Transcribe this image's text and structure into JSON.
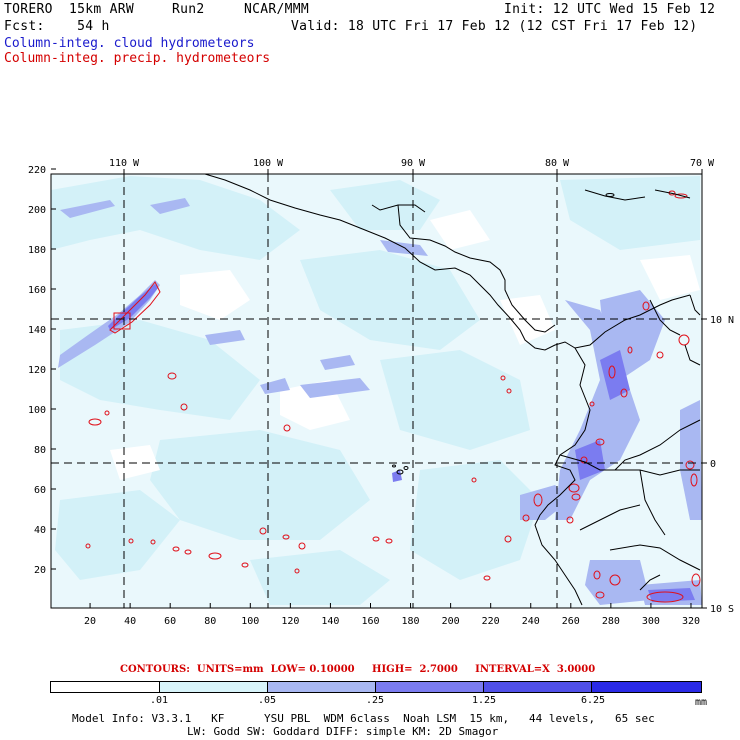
{
  "header": {
    "model_name": "TORERO  15km ARW",
    "run": "Run2",
    "org": "NCAR/MMM",
    "init": "Init: 12 UTC Wed 15 Feb 12",
    "forecast": "Fcst:    54 h",
    "valid": "Valid: 18 UTC Fri 17 Feb 12 (12 CST Fri 17 Feb 12)"
  },
  "legend": {
    "cloud": "Column-integ. cloud hydrometeors",
    "precip": "Column-integ. precip. hydrometeors"
  },
  "map": {
    "top_lon_labels": [
      "110 W",
      "100 W",
      "90 W",
      "80 W",
      "70 W"
    ],
    "right_lat_labels": [
      "10 N",
      "0",
      "10 S"
    ],
    "x_ticks": [
      "20",
      "40",
      "60",
      "80",
      "100",
      "120",
      "140",
      "160",
      "180",
      "200",
      "220",
      "240",
      "260",
      "280",
      "300",
      "320"
    ],
    "y_ticks": [
      "220",
      "200",
      "180",
      "160",
      "140",
      "120",
      "100",
      "80",
      "60",
      "40",
      "20"
    ]
  },
  "contours": {
    "text": "CONTOURS:  UNITS=mm  LOW= 0.10000     HIGH=  2.7000     INTERVAL=X  3.0000"
  },
  "colorbar": {
    "labels": [
      ".01",
      ".05",
      ".25",
      "1.25",
      "6.25"
    ],
    "unit": "mm",
    "colors": [
      "#ffffff",
      "#d8f4fa",
      "#a9b8f2",
      "#7b7cf0",
      "#5050e8",
      "#2a2ae6"
    ]
  },
  "model_info": {
    "line1": "Model Info: V3.3.1   KF      YSU PBL  WDM 6class  Noah LSM  15 km,   44 levels,   65 sec",
    "line2": "LW: Godd SW: Goddard DIFF: simple KM: 2D Smagor"
  }
}
